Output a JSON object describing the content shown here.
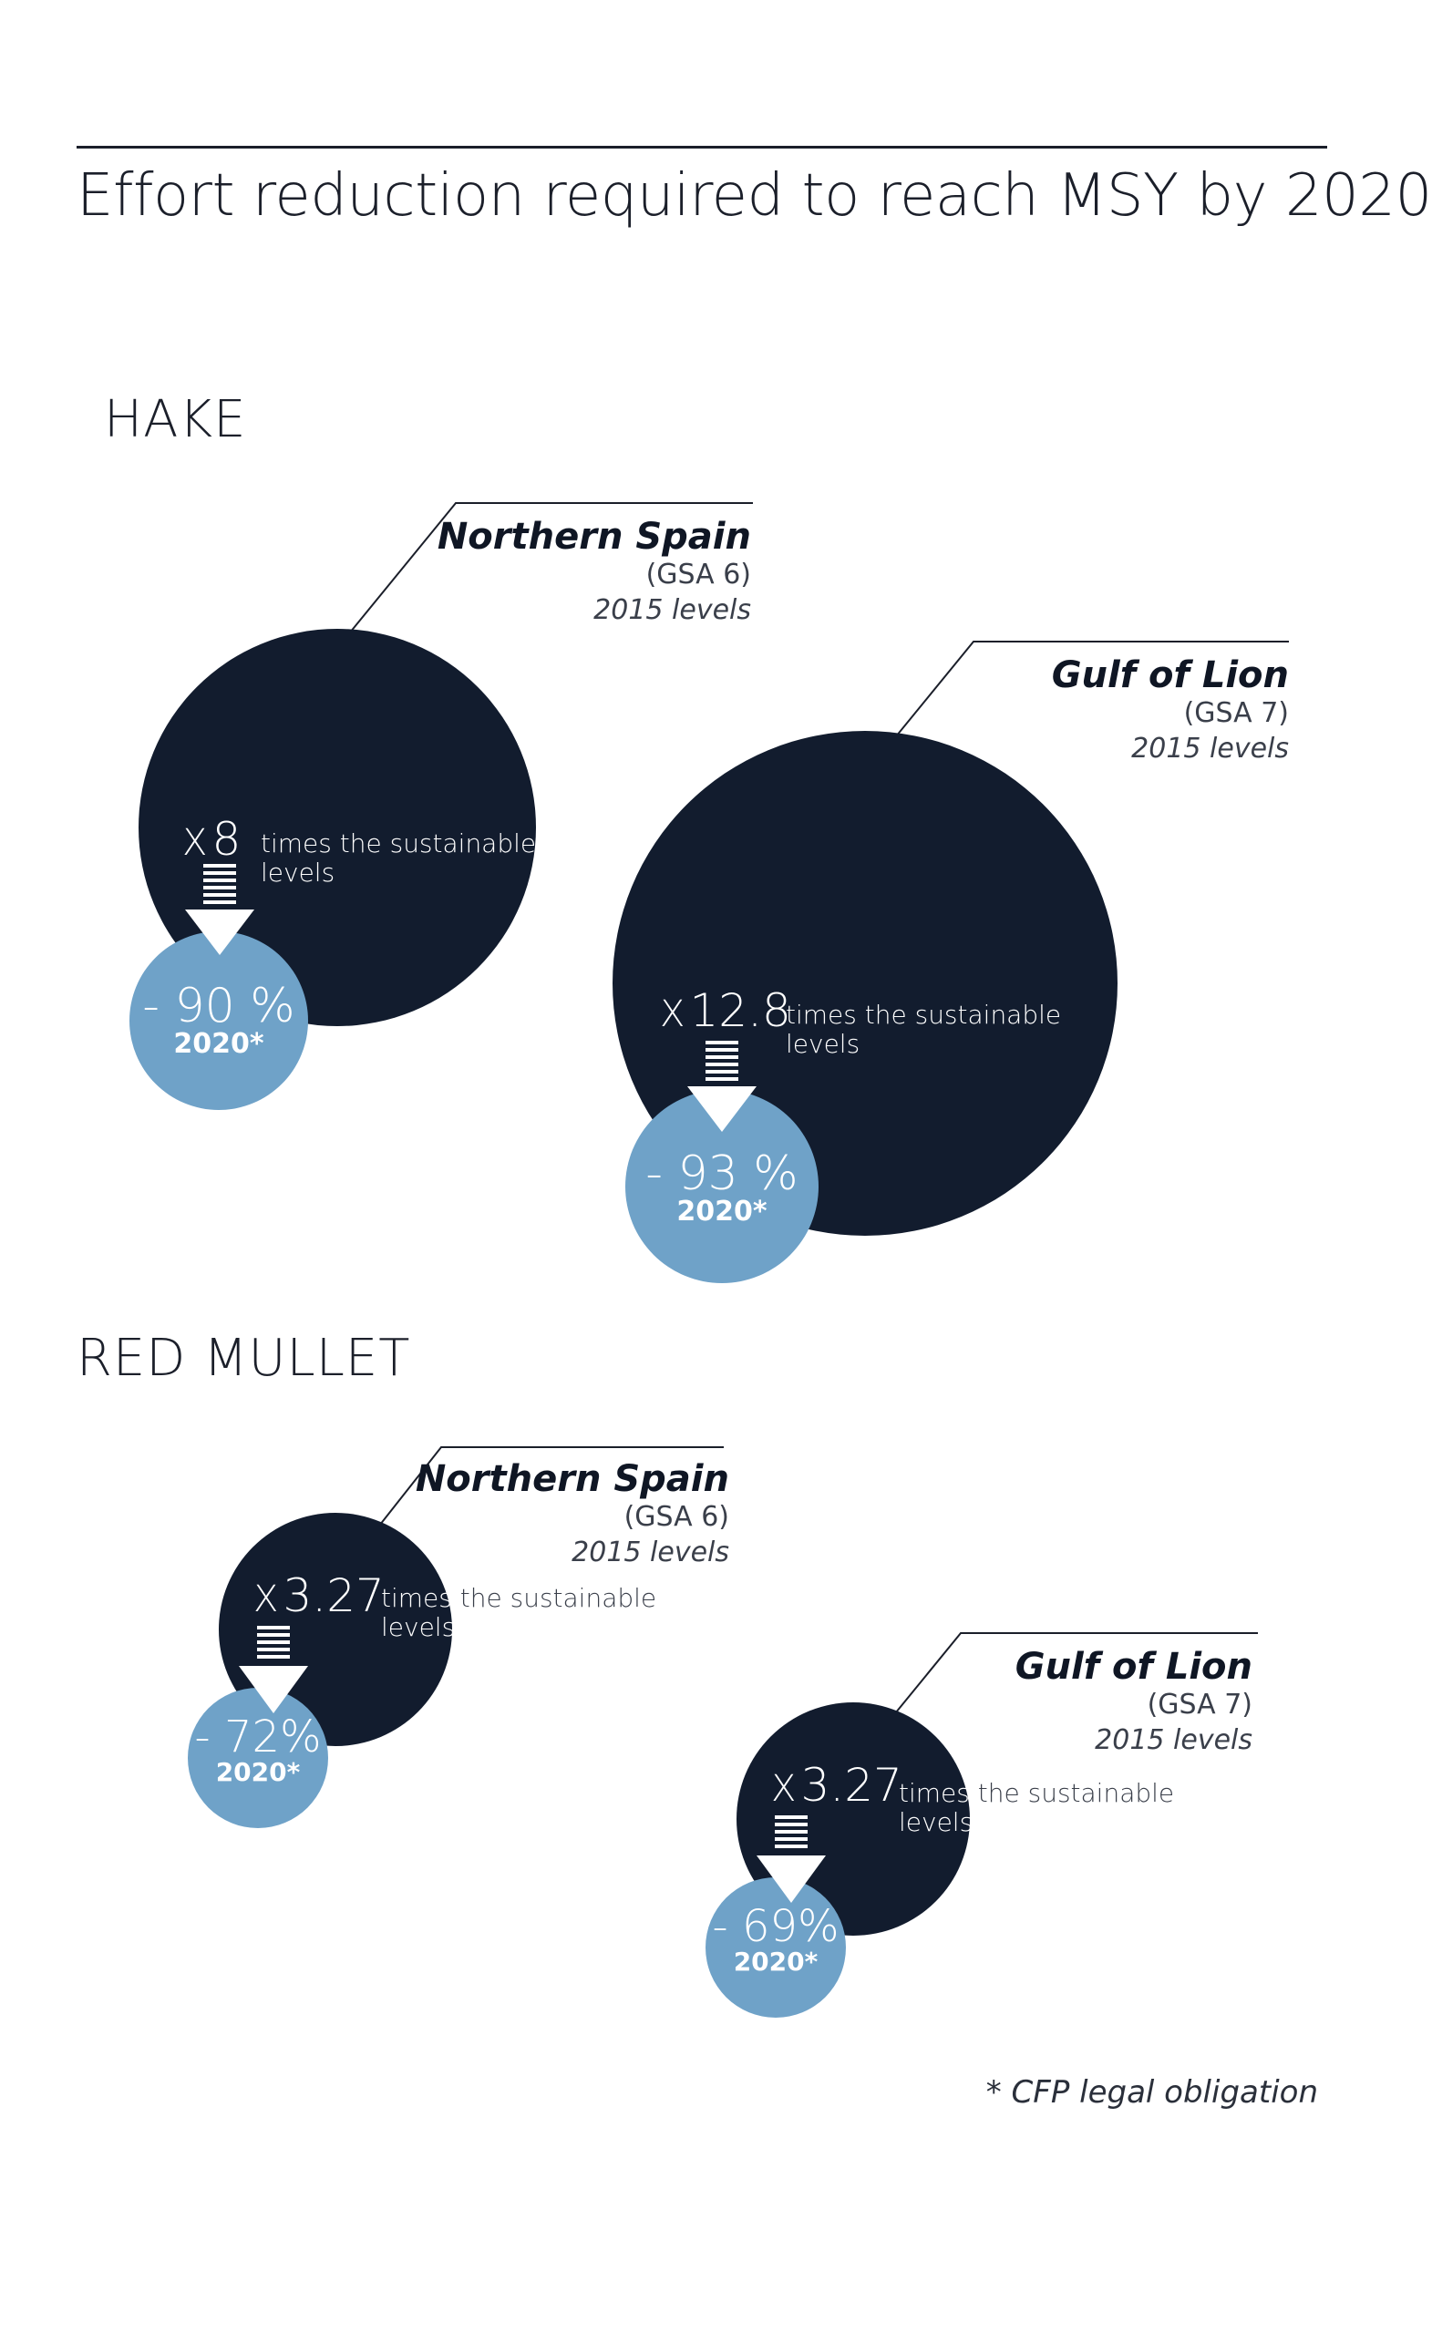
{
  "title": "Effort reduction required to reach MSY by 2020",
  "sections": {
    "hake": "HAKE",
    "red_mullet": "RED  MULLET"
  },
  "hake": {
    "northern_spain": {
      "name": "Northern Spain",
      "gsa": "(GSA 6)",
      "levels": "2015 levels",
      "factor_x": "X",
      "factor": "8",
      "desc_line1": "times the sustainable",
      "desc_line2": "levels",
      "reduction": "- 90 %",
      "year": "2020*"
    },
    "gulf_of_lion": {
      "name": "Gulf of Lion",
      "gsa": "(GSA 7)",
      "levels": "2015 levels",
      "factor_x": "X",
      "factor": "12.8",
      "desc_line1": "times the sustainable",
      "desc_line2": "levels",
      "reduction": "- 93 %",
      "year": "2020*"
    }
  },
  "red_mullet": {
    "northern_spain": {
      "name": "Northern Spain",
      "gsa": "(GSA 6)",
      "levels": "2015 levels",
      "factor_x": "X",
      "factor": "3.27",
      "desc_a": "times",
      "desc_b": " the sustainable",
      "desc_line2": "levels",
      "reduction": "- 72%",
      "year": "2020*"
    },
    "gulf_of_lion": {
      "name": "Gulf of Lion",
      "gsa": "(GSA 7)",
      "levels": "2015 levels",
      "factor_x": "X",
      "factor": "3.27",
      "desc_a": "times",
      "desc_b": " the sustainable",
      "desc_line2": "levels",
      "reduction": "- 69%",
      "year": "2020*"
    }
  },
  "footnote": "* CFP legal obligation",
  "colors": {
    "dark_circle": "#121c2e",
    "light_circle": "#6fa2c8",
    "text": "#1b1f2a"
  }
}
